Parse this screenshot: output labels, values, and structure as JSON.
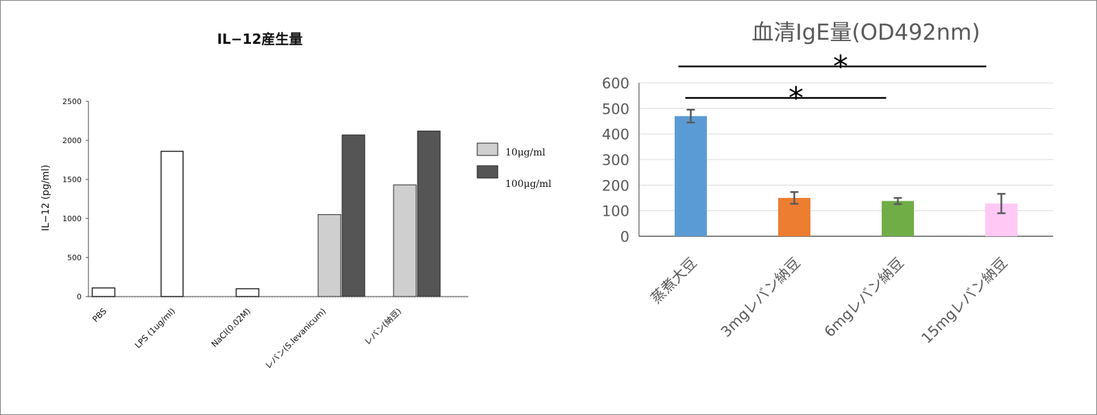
{
  "chart_data": [
    {
      "type": "bar",
      "title": "IL−12産生量",
      "ylabel": "IL−12 (pg/ml)",
      "xlabel": "",
      "categories": [
        "PBS",
        "LPS (1ug/ml)",
        "NaCl(0.02M)",
        "レバン(S.levanicum)",
        "レバン(納豆)"
      ],
      "series": [
        {
          "name": "10μg/ml",
          "values": [
            null,
            null,
            null,
            1050,
            1430
          ]
        },
        {
          "name": "100μg/ml",
          "values": [
            null,
            null,
            null,
            2070,
            2120
          ]
        }
      ],
      "single_values": [
        110,
        1860,
        100,
        null,
        null
      ],
      "ylim": [
        0,
        2500
      ],
      "yticks": [
        "0",
        "500",
        "1000",
        "1500",
        "2000",
        "2500"
      ],
      "legend_position": "right",
      "grid": false,
      "colors": {
        "low": "#cfcfcf",
        "high": "#555555",
        "single": "#ffffff"
      }
    },
    {
      "type": "bar",
      "title": "血清IgE量(OD492nm)",
      "xlabel": "",
      "ylabel": "",
      "categories": [
        "蒸煮大豆",
        "3mgレバン納豆",
        "6mgレバン納豆",
        "15mgレバン納豆"
      ],
      "values": [
        470,
        150,
        138,
        128
      ],
      "errors": [
        25,
        23,
        12,
        38
      ],
      "ylim": [
        0,
        600
      ],
      "yticks": [
        "0",
        "100",
        "200",
        "300",
        "400",
        "500",
        "600"
      ],
      "grid": true,
      "colors": [
        "#5b9bd5",
        "#ed7d31",
        "#70ad47",
        "#ffc8f5"
      ],
      "annotations": [
        {
          "text": "*",
          "from": "蒸煮大豆",
          "to": "15mgレバン納豆"
        },
        {
          "text": "*",
          "from": "蒸煮大豆",
          "to": "6mgレバン納豆"
        }
      ]
    }
  ]
}
